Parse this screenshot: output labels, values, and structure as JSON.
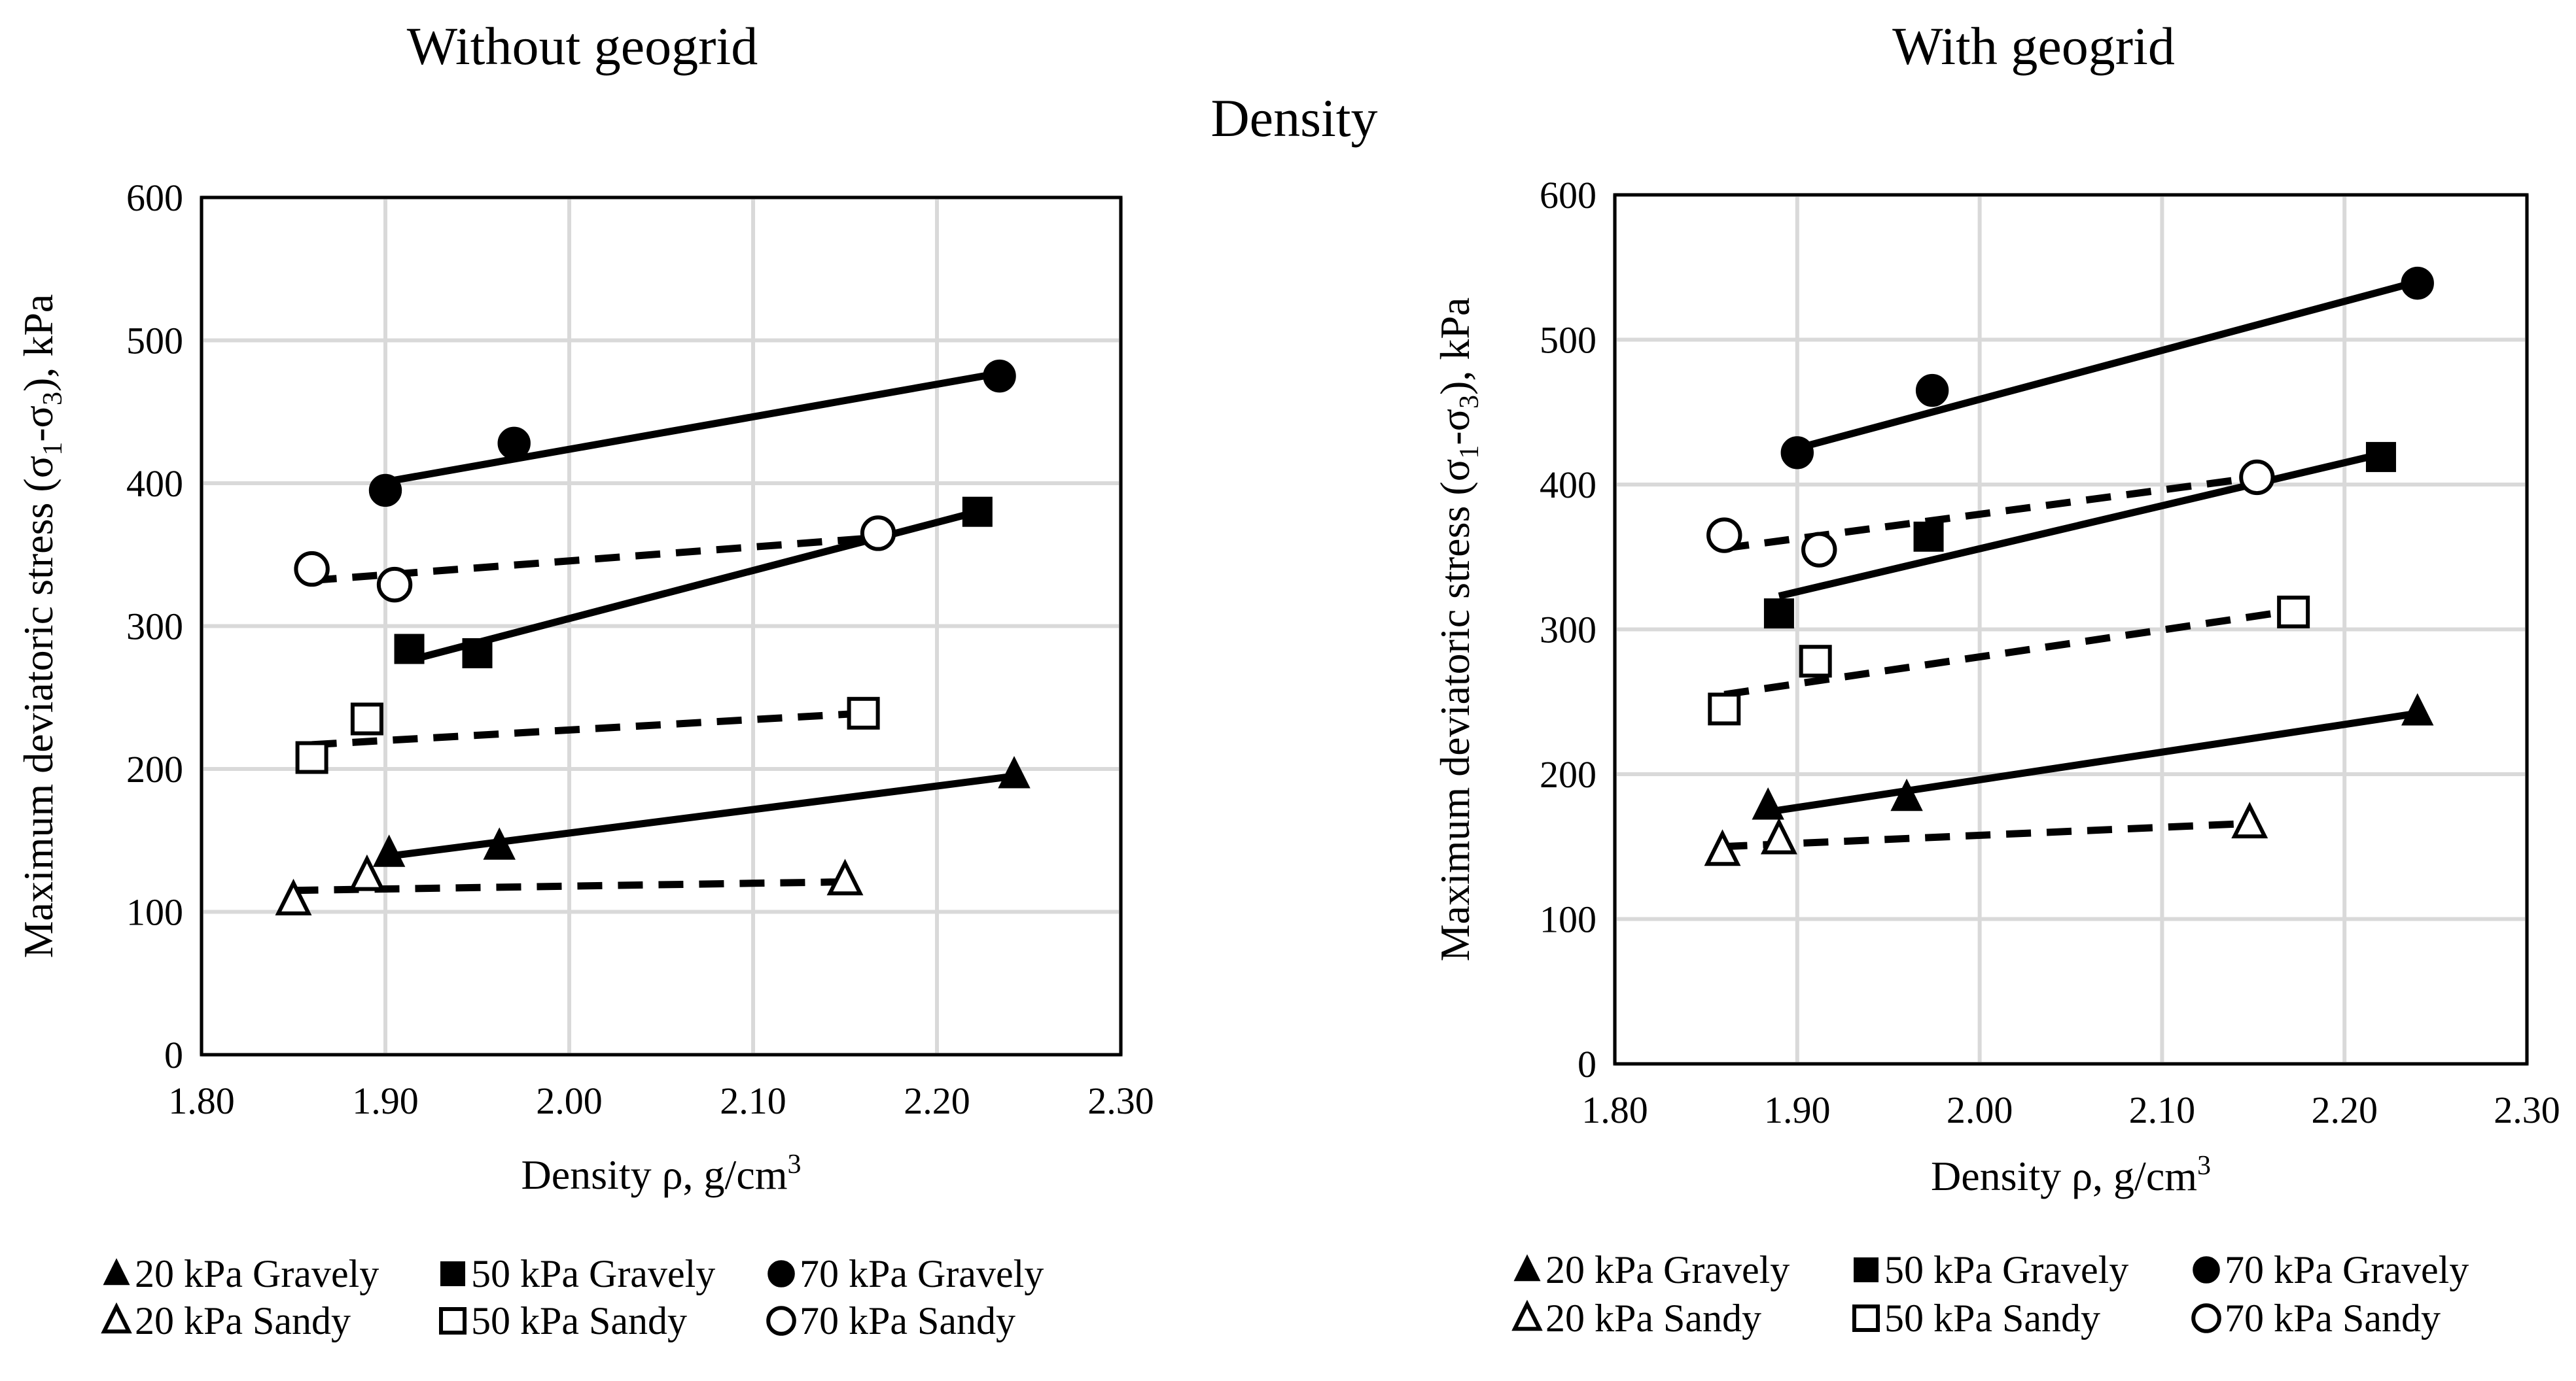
{
  "figure": {
    "title": "Density"
  },
  "chart_data": [
    {
      "type": "scatter",
      "title": "Without geogrid",
      "xlabel": "Density ρ, g/cm³",
      "xlabel_main": "Density ρ, g/cm",
      "xlabel_sup": "3",
      "ylabel": "Maximum deviatoric stress (σ1-σ3), kPa",
      "ylabel_parts": [
        "Maximum deviatoric stress (σ",
        "1",
        "-σ",
        "3",
        "), kPa"
      ],
      "xlim": [
        1.8,
        2.3
      ],
      "ylim": [
        0,
        600
      ],
      "xticks": [
        "1.80",
        "1.90",
        "2.00",
        "2.10",
        "2.20",
        "2.30"
      ],
      "yticks": [
        "0",
        "100",
        "200",
        "300",
        "400",
        "500",
        "600"
      ],
      "grid": true,
      "series": [
        {
          "name": "20 kPa Gravely",
          "marker": "triangle",
          "filled": true,
          "line": "solid",
          "x": [
            1.902,
            1.962,
            2.242
          ],
          "y": [
            141,
            146,
            196
          ],
          "fit": [
            [
              1.902,
              139
            ],
            [
              2.242,
              195
            ]
          ]
        },
        {
          "name": "50 kPa Gravely",
          "marker": "square",
          "filled": true,
          "line": "solid",
          "x": [
            1.913,
            1.95,
            2.222
          ],
          "y": [
            284,
            281,
            380
          ],
          "fit": [
            [
              1.913,
              276
            ],
            [
              2.222,
              380
            ]
          ]
        },
        {
          "name": "70 kPa Gravely",
          "marker": "circle",
          "filled": true,
          "line": "solid",
          "x": [
            1.9,
            1.97,
            2.234
          ],
          "y": [
            395,
            428,
            475
          ],
          "fit": [
            [
              1.9,
              401
            ],
            [
              2.234,
              477
            ]
          ]
        },
        {
          "name": "20 kPa Sandy",
          "marker": "triangle",
          "filled": false,
          "line": "dashed",
          "x": [
            1.85,
            1.89,
            2.15
          ],
          "y": [
            108,
            125,
            122
          ],
          "fit": [
            [
              1.85,
              115
            ],
            [
              2.15,
              121
            ]
          ]
        },
        {
          "name": "50 kPa Sandy",
          "marker": "square",
          "filled": false,
          "line": "dashed",
          "x": [
            1.86,
            1.89,
            2.16
          ],
          "y": [
            208,
            235,
            239
          ],
          "fit": [
            [
              1.86,
              217
            ],
            [
              2.16,
              239
            ]
          ]
        },
        {
          "name": "70 kPa Sandy",
          "marker": "circle",
          "filled": false,
          "line": "dashed",
          "x": [
            1.86,
            1.905,
            2.168
          ],
          "y": [
            340,
            329,
            365
          ],
          "fit": [
            [
              1.86,
              332
            ],
            [
              2.168,
              362
            ]
          ]
        }
      ]
    },
    {
      "type": "scatter",
      "title": "With geogrid",
      "xlabel": "Density ρ, g/cm³",
      "xlabel_main": "Density ρ, g/cm",
      "xlabel_sup": "3",
      "ylabel": "Maximum deviatoric stress (σ1-σ3), kPa",
      "ylabel_parts": [
        "Maximum deviatoric stress (σ",
        "1",
        "-σ",
        "3",
        "), kPa"
      ],
      "xlim": [
        1.8,
        2.3
      ],
      "ylim": [
        0,
        600
      ],
      "xticks": [
        "1.80",
        "1.90",
        "2.00",
        "2.10",
        "2.20",
        "2.30"
      ],
      "yticks": [
        "0",
        "100",
        "200",
        "300",
        "400",
        "500",
        "600"
      ],
      "grid": true,
      "series": [
        {
          "name": "20 kPa Gravely",
          "marker": "triangle",
          "filled": true,
          "line": "solid",
          "x": [
            1.884,
            1.96,
            2.24
          ],
          "y": [
            178,
            184,
            243
          ],
          "fit": [
            [
              1.884,
              174
            ],
            [
              2.24,
              242
            ]
          ]
        },
        {
          "name": "50 kPa Gravely",
          "marker": "square",
          "filled": true,
          "line": "solid",
          "x": [
            1.89,
            1.972,
            2.22
          ],
          "y": [
            311,
            364,
            419
          ],
          "fit": [
            [
              1.89,
              323
            ],
            [
              2.22,
              421
            ]
          ]
        },
        {
          "name": "70 kPa Gravely",
          "marker": "circle",
          "filled": true,
          "line": "solid",
          "x": [
            1.9,
            1.974,
            2.24
          ],
          "y": [
            422,
            465,
            539
          ],
          "fit": [
            [
              1.9,
              425
            ],
            [
              2.24,
              540
            ]
          ]
        },
        {
          "name": "20 kPa Sandy",
          "marker": "triangle",
          "filled": false,
          "line": "dashed",
          "x": [
            1.859,
            1.89,
            2.148
          ],
          "y": [
            147,
            155,
            166
          ],
          "fit": [
            [
              1.859,
              150
            ],
            [
              2.148,
              166
            ]
          ]
        },
        {
          "name": "50 kPa Sandy",
          "marker": "square",
          "filled": false,
          "line": "dashed",
          "x": [
            1.86,
            1.91,
            2.172
          ],
          "y": [
            245,
            278,
            312
          ],
          "fit": [
            [
              1.86,
              255
            ],
            [
              2.172,
              313
            ]
          ]
        },
        {
          "name": "70 kPa Sandy",
          "marker": "circle",
          "filled": false,
          "line": "dashed",
          "x": [
            1.86,
            1.912,
            2.152
          ],
          "y": [
            365,
            355,
            405
          ],
          "fit": [
            [
              1.86,
              356
            ],
            [
              2.152,
              405
            ]
          ]
        }
      ]
    }
  ]
}
